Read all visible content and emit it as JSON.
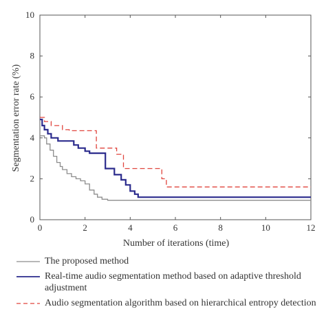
{
  "chart_data": {
    "type": "line",
    "xlabel": "Number of iterations (time)",
    "ylabel": "Segmentation error rate (%)",
    "xlim": [
      0,
      12
    ],
    "ylim": [
      0,
      10
    ],
    "xticks": [
      "0",
      "2",
      "4",
      "6",
      "8",
      "10",
      "12"
    ],
    "yticks": [
      "0",
      "2",
      "4",
      "6",
      "8",
      "10"
    ],
    "grid": false,
    "legend_position": "bottom",
    "series": [
      {
        "name": "The proposed method",
        "color": "#8c8c8c",
        "style": "solid",
        "x": [
          0,
          0.2,
          0.3,
          0.45,
          0.6,
          0.75,
          0.9,
          1.0,
          1.2,
          1.4,
          1.6,
          1.8,
          2.0,
          2.2,
          2.4,
          2.55,
          2.75,
          3.0,
          4.3,
          6.0,
          8.0,
          10.0,
          12.0
        ],
        "y": [
          4.1,
          4.0,
          3.7,
          3.4,
          3.1,
          2.8,
          2.6,
          2.45,
          2.25,
          2.1,
          2.0,
          1.9,
          1.75,
          1.45,
          1.25,
          1.1,
          1.0,
          0.95,
          0.95,
          0.95,
          0.95,
          0.95,
          0.95
        ]
      },
      {
        "name": "Real-time audio segmentation method based on adaptive threshold adjustment",
        "color": "#2a2a8c",
        "style": "solid",
        "x": [
          0,
          0.1,
          0.2,
          0.35,
          0.5,
          0.8,
          1.5,
          1.7,
          2.0,
          2.2,
          2.9,
          3.3,
          3.6,
          3.8,
          4.0,
          4.2,
          4.35,
          6.0,
          8.0,
          10.0,
          12.0
        ],
        "y": [
          4.9,
          4.6,
          4.4,
          4.2,
          4.0,
          3.85,
          3.65,
          3.5,
          3.35,
          3.25,
          2.5,
          2.2,
          1.95,
          1.7,
          1.4,
          1.25,
          1.1,
          1.1,
          1.1,
          1.1,
          1.1
        ]
      },
      {
        "name": "Audio segmentation algorithm based on hierarchical entropy detection",
        "color": "#e0443c",
        "style": "dashed",
        "x": [
          0,
          0.2,
          0.5,
          1.0,
          1.3,
          2.0,
          2.5,
          3.0,
          3.4,
          3.7,
          4.5,
          5.0,
          5.4,
          5.6,
          6.0,
          8.0,
          10.0,
          12.0
        ],
        "y": [
          5.0,
          4.8,
          4.6,
          4.4,
          4.35,
          4.35,
          3.5,
          3.5,
          3.2,
          2.5,
          2.5,
          2.5,
          2.0,
          1.6,
          1.6,
          1.6,
          1.6,
          1.6
        ]
      }
    ]
  }
}
